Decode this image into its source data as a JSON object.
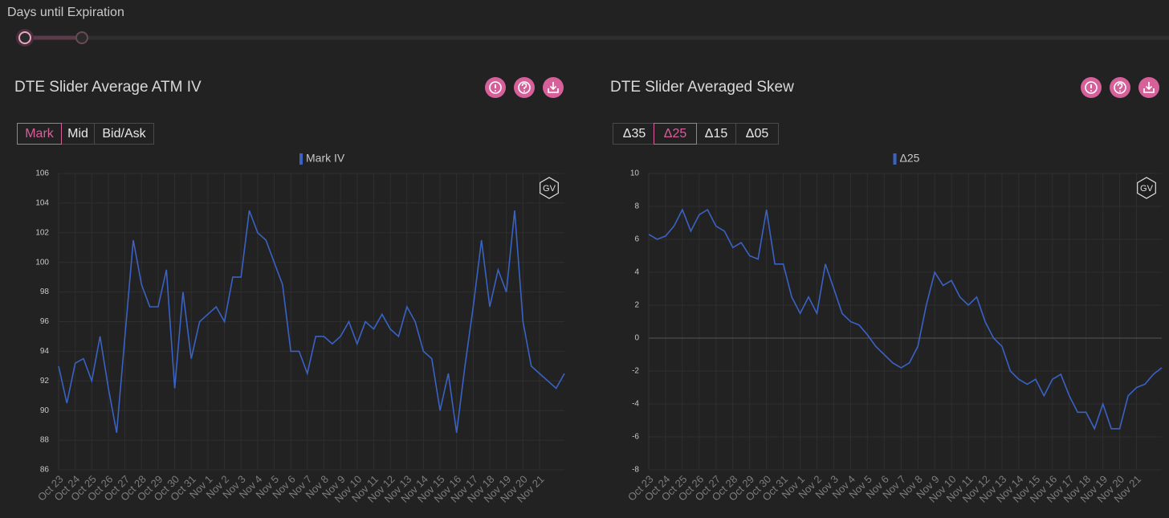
{
  "header": {
    "label": "Days until Expiration"
  },
  "panels": [
    {
      "title": "DTE Slider Average ATM IV",
      "buttons": [
        "Mark",
        "Mid",
        "Bid/Ask"
      ],
      "selected": 0
    },
    {
      "title": "DTE Slider Averaged Skew",
      "buttons": [
        "Δ35",
        "Δ25",
        "Δ15",
        "Δ05"
      ],
      "selected": 1
    }
  ],
  "badge": "GV",
  "chart_data": [
    {
      "type": "line",
      "categories": [
        "Oct 23",
        null,
        "Oct 24",
        null,
        "Oct 25",
        null,
        "Oct 26",
        null,
        "Oct 27",
        null,
        "Oct 28",
        null,
        "Oct 29",
        null,
        "Oct 30",
        null,
        "Oct 31",
        null,
        "Nov 1",
        null,
        "Nov 2",
        null,
        "Nov 3",
        null,
        "Nov 4",
        null,
        "Nov 5",
        null,
        "Nov 6",
        null,
        "Nov 7",
        null,
        "Nov 8",
        null,
        "Nov 9",
        null,
        "Nov 10",
        null,
        "Nov 11",
        null,
        "Nov 12",
        null,
        "Nov 13",
        null,
        "Nov 14",
        null,
        "Nov 15",
        null,
        "Nov 16",
        null,
        "Nov 17",
        null,
        "Nov 18",
        null,
        "Nov 19",
        null,
        "Nov 20",
        null,
        "Nov 21",
        null,
        null,
        null
      ],
      "series": [
        {
          "name": "Mark IV",
          "color": "#3a62c4",
          "values": [
            93,
            90.5,
            93.2,
            93.5,
            92,
            95,
            91.5,
            88.5,
            95,
            101.5,
            98.5,
            97,
            97,
            99.5,
            91.5,
            98,
            93.5,
            96,
            96.5,
            97,
            96,
            99,
            99,
            103.5,
            102,
            101.5,
            100,
            98.5,
            94,
            94,
            92.5,
            95,
            95,
            94.5,
            95,
            96,
            94.5,
            96,
            95.5,
            96.5,
            95.5,
            95,
            97,
            96,
            94,
            93.5,
            90,
            92.5,
            88.5,
            93,
            97,
            101.5,
            97,
            99.5,
            98,
            103.5,
            96,
            93,
            92.5,
            92,
            91.5,
            92.5
          ]
        }
      ],
      "ylim": [
        86,
        106
      ],
      "yticks": [
        86,
        88,
        90,
        92,
        94,
        96,
        98,
        100,
        102,
        104,
        106
      ],
      "grid": true
    },
    {
      "type": "line",
      "categories": [
        "Oct 23",
        null,
        "Oct 24",
        null,
        "Oct 25",
        null,
        "Oct 26",
        null,
        "Oct 27",
        null,
        "Oct 28",
        null,
        "Oct 29",
        null,
        "Oct 30",
        null,
        "Oct 31",
        null,
        "Nov 1",
        null,
        "Nov 2",
        null,
        "Nov 3",
        null,
        "Nov 4",
        null,
        "Nov 5",
        null,
        "Nov 6",
        null,
        "Nov 7",
        null,
        "Nov 8",
        null,
        "Nov 9",
        null,
        "Nov 10",
        null,
        "Nov 11",
        null,
        "Nov 12",
        null,
        "Nov 13",
        null,
        "Nov 14",
        null,
        "Nov 15",
        null,
        "Nov 16",
        null,
        "Nov 17",
        null,
        "Nov 18",
        null,
        "Nov 19",
        null,
        "Nov 20",
        null,
        "Nov 21",
        null,
        null,
        null
      ],
      "series": [
        {
          "name": "Δ25",
          "color": "#3a62c4",
          "values": [
            6.3,
            6,
            6.2,
            6.8,
            7.8,
            6.5,
            7.5,
            7.8,
            6.8,
            6.5,
            5.5,
            5.8,
            5,
            4.8,
            7.8,
            4.5,
            4.5,
            2.5,
            1.5,
            2.5,
            1.5,
            4.5,
            3,
            1.5,
            1,
            0.8,
            0.2,
            -0.5,
            -1,
            -1.5,
            -1.8,
            -1.5,
            -0.5,
            2,
            4,
            3.2,
            3.5,
            2.5,
            2,
            2.5,
            1,
            0,
            -0.5,
            -2,
            -2.5,
            -2.8,
            -2.5,
            -3.5,
            -2.5,
            -2.2,
            -3.5,
            -4.5,
            -4.5,
            -5.5,
            -4,
            -5.5,
            -5.5,
            -3.5,
            -3,
            -2.8,
            -2.2,
            -1.8
          ]
        }
      ],
      "ylim": [
        -8,
        10
      ],
      "yticks": [
        -8,
        -6,
        -4,
        -2,
        0,
        2,
        4,
        6,
        8,
        10
      ],
      "grid": true
    }
  ]
}
